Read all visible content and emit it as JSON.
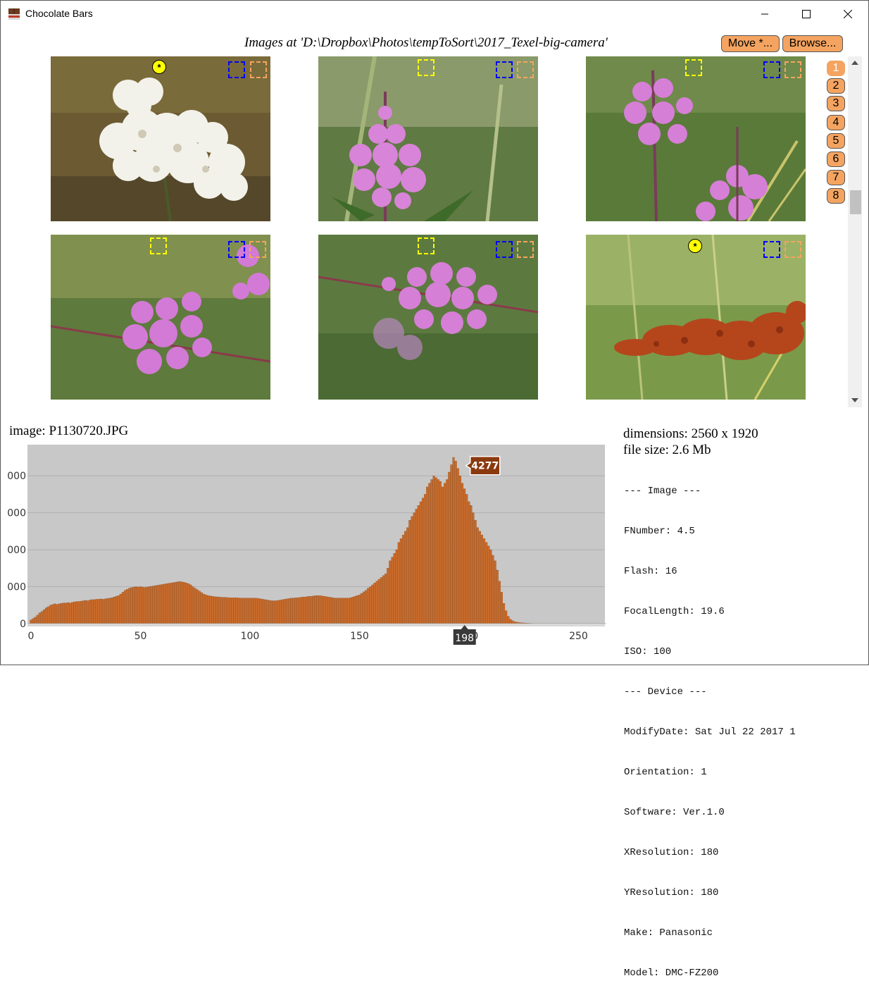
{
  "window": {
    "title": "Chocolate Bars",
    "controls": [
      "minimize",
      "maximize",
      "close"
    ]
  },
  "header": {
    "path_text": "Images at 'D:\\Dropbox\\Photos\\tempToSort\\2017_Texel-big-camera'",
    "move_label": "Move *...",
    "browse_label": "Browse..."
  },
  "thumbnails": [
    {
      "subject": "white yarrow",
      "starred": true,
      "star_text": "*"
    },
    {
      "subject": "pink fireweed",
      "starred": false
    },
    {
      "subject": "pink fireweed",
      "starred": false
    },
    {
      "subject": "pink fireweed",
      "starred": false
    },
    {
      "subject": "pink fireweed",
      "starred": false
    },
    {
      "subject": "red seed head",
      "starred": true,
      "star_text": "*"
    }
  ],
  "pages": [
    "1",
    "2",
    "3",
    "4",
    "5",
    "6",
    "7",
    "8"
  ],
  "active_page": "1",
  "image_info": {
    "image_label": "image: P1130720.JPG",
    "dimensions": "dimensions: 2560 x 1920",
    "file_size": "file size: 2.6 Mb",
    "exif_lines": [
      "--- Image ---",
      "FNumber: 4.5",
      "Flash: 16",
      "FocalLength: 19.6",
      "ISO: 100",
      "--- Device ---",
      "ModifyDate: Sat Jul 22 2017 1",
      "Orientation: 1",
      "Software: Ver.1.0",
      "XResolution: 180",
      "YResolution: 180",
      "Make: Panasonic",
      "Model: DMC-FZ200"
    ]
  },
  "chart_data": {
    "type": "bar",
    "xlim": [
      0,
      255
    ],
    "ylim": [
      0,
      4500
    ],
    "x_ticks": [
      "0",
      "50",
      "100",
      "150",
      "200",
      "250"
    ],
    "y_ticks": [
      "000",
      "000",
      "000",
      "000",
      "0"
    ],
    "tooltip": {
      "x": "198",
      "y": "4277"
    },
    "colors": {
      "bar": "#c96b2b",
      "bar_edge": "#8b4513",
      "plot_bg": "#c8c8c8",
      "tooltip_bg": "#8b3a0f",
      "xlabel_bg": "#3a3a3a"
    },
    "values": [
      100,
      140,
      175,
      230,
      290,
      330,
      380,
      430,
      460,
      500,
      520,
      540,
      520,
      540,
      550,
      560,
      560,
      570,
      560,
      580,
      590,
      600,
      600,
      610,
      620,
      630,
      620,
      640,
      650,
      650,
      660,
      660,
      670,
      660,
      670,
      680,
      690,
      700,
      720,
      740,
      760,
      800,
      850,
      900,
      930,
      960,
      980,
      990,
      1000,
      990,
      1000,
      990,
      980,
      990,
      1000,
      1010,
      1020,
      1030,
      1040,
      1050,
      1060,
      1070,
      1080,
      1090,
      1100,
      1110,
      1120,
      1130,
      1140,
      1130,
      1120,
      1100,
      1080,
      1050,
      1000,
      960,
      920,
      880,
      840,
      800,
      780,
      760,
      750,
      740,
      730,
      725,
      720,
      715,
      710,
      710,
      705,
      700,
      700,
      700,
      700,
      695,
      690,
      690,
      690,
      690,
      690,
      690,
      690,
      690,
      680,
      670,
      660,
      650,
      640,
      630,
      620,
      620,
      620,
      630,
      640,
      650,
      660,
      670,
      680,
      690,
      690,
      700,
      700,
      710,
      720,
      720,
      730,
      740,
      740,
      750,
      760,
      760,
      760,
      750,
      740,
      730,
      720,
      710,
      700,
      690,
      690,
      690,
      690,
      690,
      690,
      690,
      700,
      720,
      740,
      760,
      780,
      820,
      860,
      900,
      960,
      1000,
      1050,
      1100,
      1150,
      1200,
      1250,
      1300,
      1350,
      1500,
      1700,
      1800,
      1900,
      2000,
      2200,
      2300,
      2400,
      2500,
      2600,
      2800,
      2900,
      3000,
      3100,
      3200,
      3300,
      3400,
      3500,
      3700,
      3800,
      3900,
      4000,
      3950,
      3900,
      3850,
      3700,
      3800,
      3900,
      4100,
      4300,
      4500,
      4400,
      4200,
      4000,
      3800,
      3650,
      3500,
      3300,
      3200,
      3000,
      2800,
      2600,
      2500,
      2400,
      2300,
      2200,
      2100,
      2000,
      1850,
      1700,
      1450,
      1150,
      850,
      550,
      350,
      200,
      120,
      80,
      50,
      40,
      30,
      25,
      20,
      15,
      12,
      10,
      8,
      6,
      5,
      5,
      4,
      4,
      3,
      3,
      3,
      2,
      2,
      2,
      2,
      2,
      2,
      2,
      2,
      2,
      1,
      1,
      1,
      1,
      1,
      1,
      1,
      1,
      1,
      1,
      1,
      1,
      1,
      1,
      1,
      1,
      1,
      1,
      1,
      1,
      1,
      0,
      0,
      0,
      0,
      0,
      0,
      0
    ]
  }
}
